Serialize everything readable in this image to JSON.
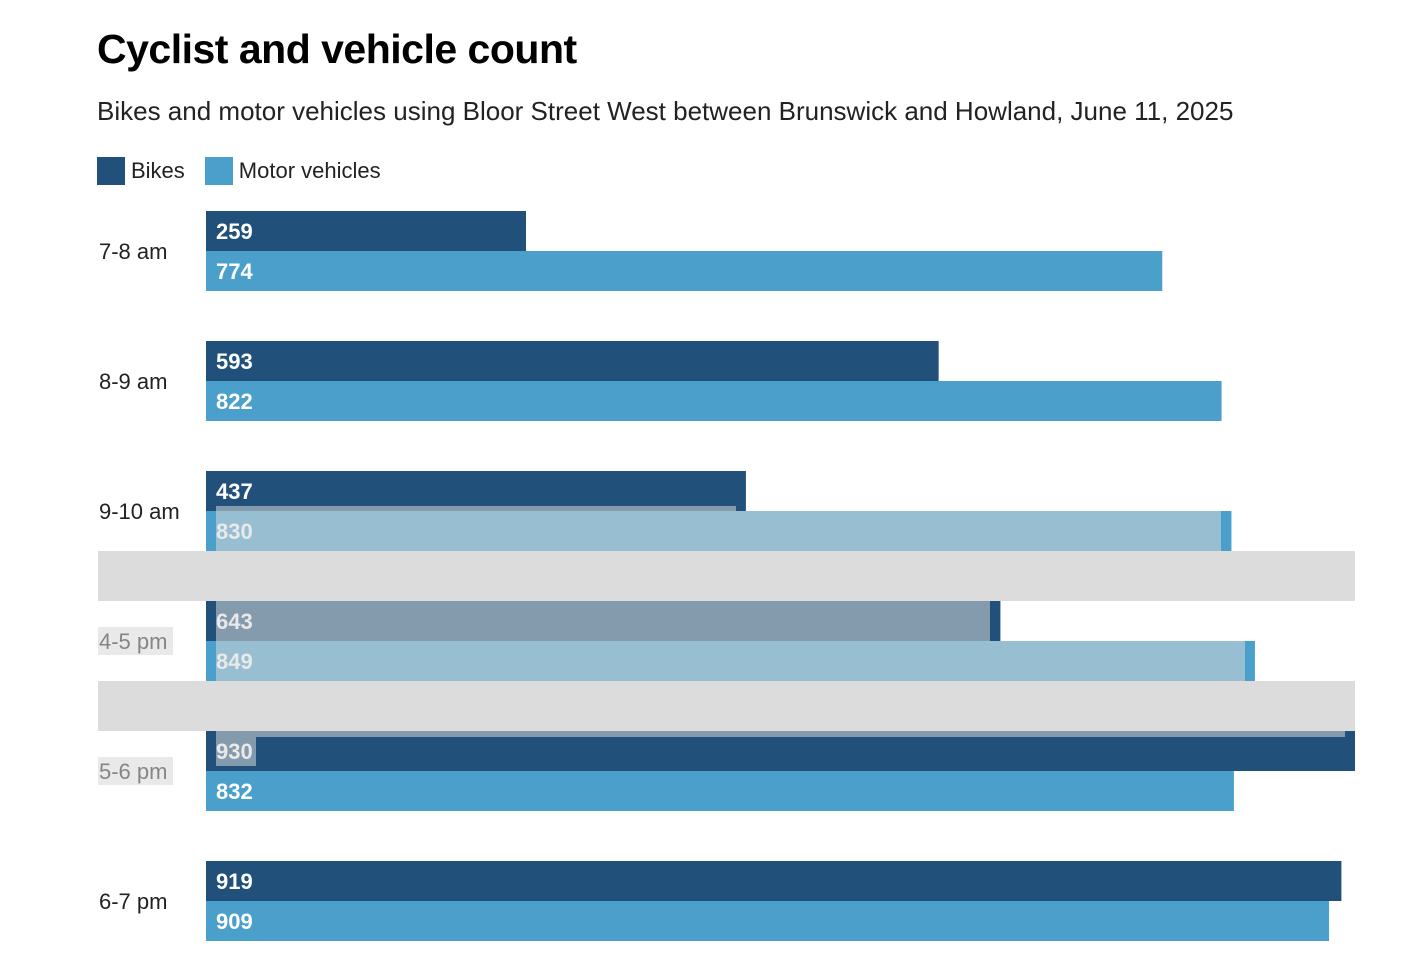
{
  "chart_data": {
    "type": "bar",
    "orientation": "horizontal",
    "title": "Cyclist and vehicle count",
    "subtitle": "Bikes and motor vehicles using Bloor Street West between Brunswick and Howland, June 11, 2025",
    "categories": [
      "7-8 am",
      "8-9 am",
      "9-10 am",
      "4-5 pm",
      "5-6 pm",
      "6-7 pm"
    ],
    "series": [
      {
        "name": "Bikes",
        "color": "#21507a",
        "values": [
          259,
          593,
          437,
          643,
          930,
          919
        ]
      },
      {
        "name": "Motor vehicles",
        "color": "#4ba0cb",
        "values": [
          774,
          822,
          830,
          849,
          832,
          909
        ]
      }
    ],
    "xlim": [
      0,
      930
    ],
    "grid": false,
    "legend_position": "top-left",
    "data_labels": true
  }
}
